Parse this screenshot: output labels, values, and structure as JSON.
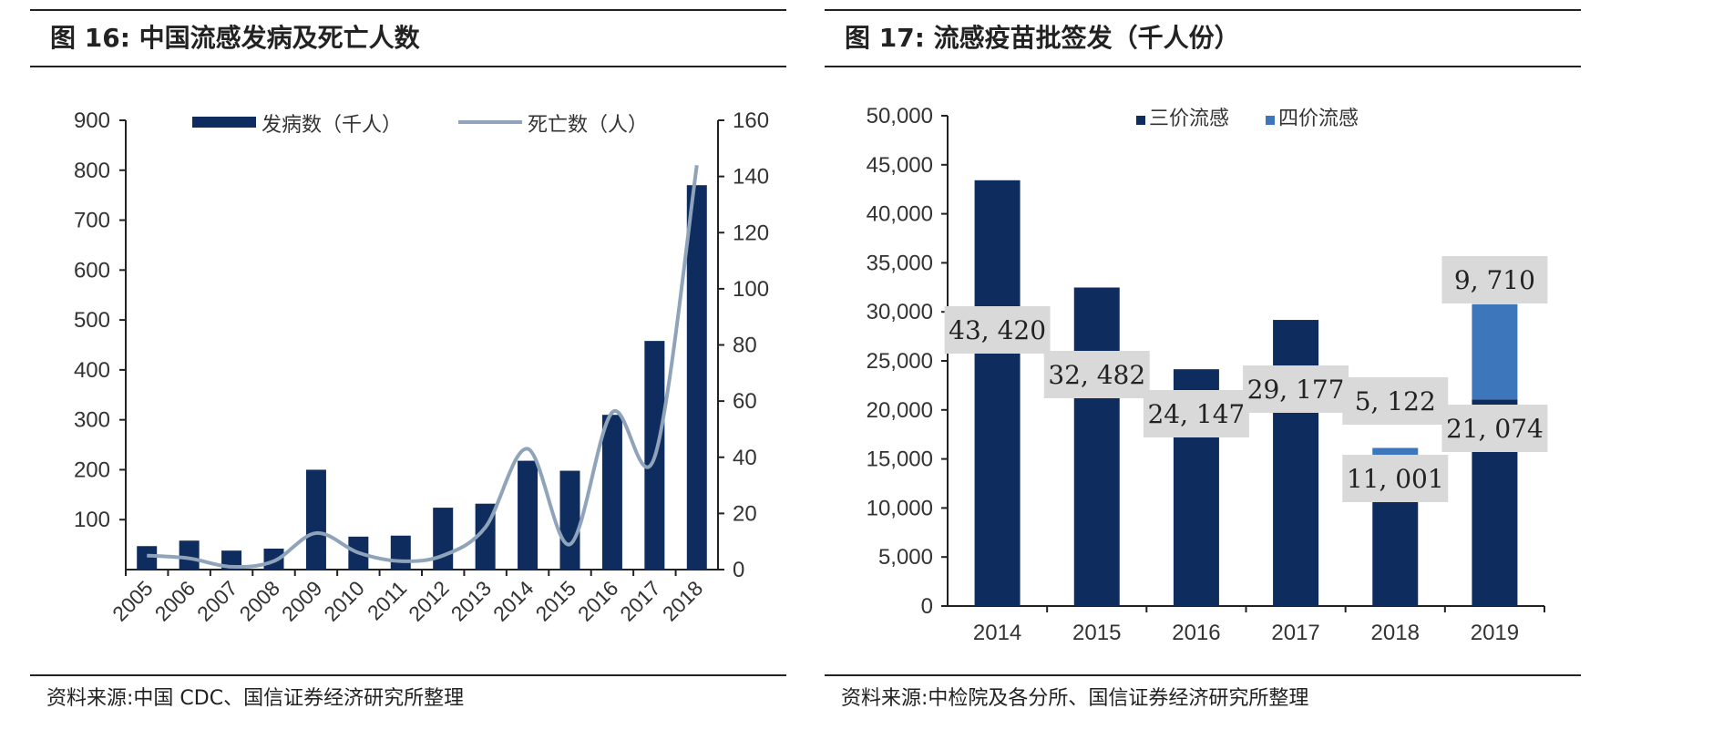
{
  "left": {
    "title": "图 16:  中国流感发病及死亡人数",
    "source": "资料来源:中国 CDC、国信证券经济研究所整理"
  },
  "right": {
    "title": "图 17:  流感疫苗批签发（千人份）",
    "source": "资料来源:中检院及各分所、国信证券经济研究所整理"
  },
  "colors": {
    "dark_navy": "#0f2c5e",
    "light_blue": "#3d76bb",
    "line_gray": "#8fa3ba",
    "label_box": "#d9d9d9"
  },
  "chart_data": [
    {
      "type": "bar",
      "categories": [
        "2005",
        "2006",
        "2007",
        "2008",
        "2009",
        "2010",
        "2011",
        "2012",
        "2013",
        "2014",
        "2015",
        "2016",
        "2017",
        "2018"
      ],
      "series": [
        {
          "name": "发病数（千人）",
          "axis": "left",
          "type": "bar",
          "values": [
            47,
            58,
            38,
            42,
            200,
            66,
            68,
            124,
            132,
            218,
            198,
            310,
            458,
            770
          ]
        },
        {
          "name": "死亡数（人）",
          "axis": "right",
          "type": "line",
          "values": [
            5,
            4,
            1,
            3,
            13,
            6,
            3,
            5,
            15,
            43,
            9,
            56,
            40,
            144
          ]
        }
      ],
      "ylim_left": [
        0,
        900
      ],
      "yticks_left": [
        "100",
        "200",
        "300",
        "400",
        "500",
        "600",
        "700",
        "800",
        "900"
      ],
      "ylim_right": [
        0,
        160
      ],
      "yticks_right": [
        "0",
        "20",
        "40",
        "60",
        "80",
        "100",
        "120",
        "140",
        "160"
      ],
      "legend": "top"
    },
    {
      "type": "bar",
      "stacked": true,
      "categories": [
        "2014",
        "2015",
        "2016",
        "2017",
        "2018",
        "2019"
      ],
      "series": [
        {
          "name": "三价流感",
          "values": [
            43420,
            32482,
            24147,
            29177,
            11001,
            21074
          ],
          "labels": [
            "43, 420",
            "32, 482",
            "24, 147",
            "29, 177",
            "11, 001",
            "21, 074"
          ]
        },
        {
          "name": "四价流感",
          "values": [
            0,
            0,
            0,
            0,
            5122,
            9710
          ],
          "labels": [
            "",
            "",
            "",
            "",
            "5, 122",
            "9, 710"
          ]
        }
      ],
      "ylim": [
        0,
        50000
      ],
      "yticks": [
        "0",
        "5,000",
        "10,000",
        "15,000",
        "20,000",
        "25,000",
        "30,000",
        "35,000",
        "40,000",
        "45,000",
        "50,000"
      ],
      "legend": "top"
    }
  ]
}
